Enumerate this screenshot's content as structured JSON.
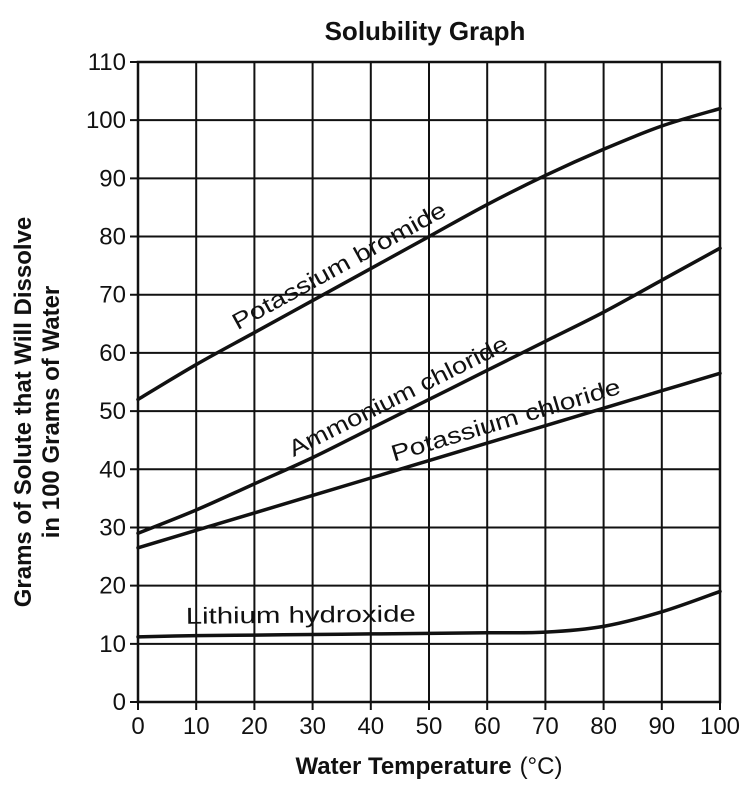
{
  "chart_data": {
    "type": "line",
    "title": "Solubility Graph",
    "xlabel": "Water Temperature",
    "xlabel_unit": "(°C)",
    "ylabel_line1": "Grams of Solute that Will Dissolve",
    "ylabel_line2": "in 100 Grams of Water",
    "xlim": [
      0,
      100
    ],
    "ylim": [
      0,
      110
    ],
    "x_ticks": [
      "0",
      "10",
      "20",
      "30",
      "40",
      "50",
      "60",
      "70",
      "80",
      "90",
      "100"
    ],
    "y_ticks": [
      "0",
      "10",
      "20",
      "30",
      "40",
      "50",
      "60",
      "70",
      "80",
      "90",
      "100",
      "110"
    ],
    "grid": true,
    "series": [
      {
        "name": "Potassium bromide",
        "x": [
          0,
          10,
          20,
          30,
          40,
          50,
          60,
          70,
          80,
          90,
          100
        ],
        "y": [
          52,
          58,
          63.5,
          69,
          74.5,
          80,
          85.5,
          90.5,
          95,
          99,
          102
        ]
      },
      {
        "name": "Ammonium chloride",
        "x": [
          0,
          10,
          20,
          30,
          40,
          50,
          60,
          70,
          80,
          90,
          100
        ],
        "y": [
          29,
          33,
          37.5,
          42,
          47,
          52,
          57,
          62,
          67,
          72.5,
          78
        ]
      },
      {
        "name": "Potassium chloride",
        "x": [
          0,
          10,
          20,
          30,
          40,
          50,
          60,
          70,
          80,
          90,
          100
        ],
        "y": [
          26.5,
          29.5,
          32.5,
          35.5,
          38.5,
          41.5,
          44.5,
          47.5,
          50.5,
          53.5,
          56.5
        ]
      },
      {
        "name": "Lithium hydroxide",
        "x": [
          0,
          10,
          20,
          30,
          40,
          50,
          60,
          70,
          80,
          90,
          100
        ],
        "y": [
          11.2,
          11.4,
          11.5,
          11.6,
          11.7,
          11.8,
          11.9,
          12.0,
          13.0,
          15.5,
          19
        ]
      }
    ]
  }
}
